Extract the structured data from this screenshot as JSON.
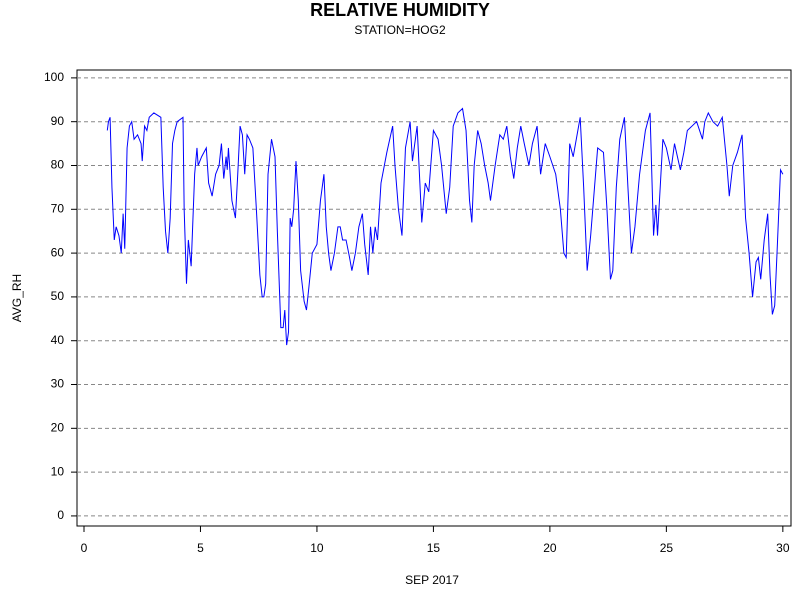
{
  "chart_data": {
    "type": "line",
    "title": "RELATIVE HUMIDITY",
    "subtitle": "STATION=HOG2",
    "x_label": "SEP 2017",
    "y_label": "AVG_RH",
    "xlim": [
      -0.3,
      30.35
    ],
    "ylim": [
      -2.3,
      101.8
    ],
    "xticks": [
      0,
      5,
      10,
      15,
      20,
      25,
      30
    ],
    "yticks": [
      0,
      10,
      20,
      30,
      40,
      50,
      60,
      70,
      80,
      90,
      100
    ],
    "grid": true,
    "x": [
      1.0,
      1.05,
      1.12,
      1.2,
      1.3,
      1.38,
      1.5,
      1.6,
      1.68,
      1.75,
      1.85,
      1.95,
      2.05,
      2.15,
      2.3,
      2.45,
      2.5,
      2.6,
      2.7,
      2.8,
      3.0,
      3.3,
      3.4,
      3.5,
      3.6,
      3.7,
      3.8,
      3.9,
      4.0,
      4.25,
      4.3,
      4.4,
      4.48,
      4.6,
      4.75,
      4.85,
      4.9,
      5.05,
      5.25,
      5.35,
      5.5,
      5.65,
      5.8,
      5.9,
      6.0,
      6.1,
      6.15,
      6.2,
      6.35,
      6.5,
      6.6,
      6.7,
      6.8,
      6.9,
      7.0,
      7.1,
      7.25,
      7.4,
      7.55,
      7.65,
      7.72,
      7.8,
      7.9,
      8.05,
      8.2,
      8.3,
      8.45,
      8.55,
      8.62,
      8.7,
      8.78,
      8.85,
      8.92,
      9.0,
      9.1,
      9.2,
      9.3,
      9.45,
      9.55,
      9.65,
      9.8,
      10.0,
      10.15,
      10.3,
      10.4,
      10.5,
      10.6,
      10.75,
      10.9,
      11.0,
      11.1,
      11.25,
      11.4,
      11.5,
      11.65,
      11.8,
      11.95,
      12.05,
      12.2,
      12.3,
      12.4,
      12.5,
      12.6,
      12.75,
      13.0,
      13.25,
      13.35,
      13.5,
      13.65,
      13.8,
      14.0,
      14.1,
      14.3,
      14.5,
      14.65,
      14.8,
      15.0,
      15.2,
      15.35,
      15.55,
      15.7,
      15.85,
      16.05,
      16.25,
      16.4,
      16.55,
      16.65,
      16.75,
      16.9,
      17.05,
      17.2,
      17.35,
      17.45,
      17.65,
      17.85,
      18.0,
      18.15,
      18.3,
      18.45,
      18.6,
      18.75,
      18.9,
      19.1,
      19.25,
      19.45,
      19.6,
      19.8,
      20.0,
      20.25,
      20.45,
      20.6,
      20.7,
      20.85,
      21.0,
      21.3,
      21.45,
      21.6,
      21.75,
      22.05,
      22.3,
      22.45,
      22.6,
      22.7,
      22.85,
      23.0,
      23.2,
      23.35,
      23.5,
      23.65,
      23.85,
      24.1,
      24.3,
      24.45,
      24.55,
      24.62,
      24.85,
      25.0,
      25.2,
      25.35,
      25.6,
      25.75,
      25.9,
      26.1,
      26.3,
      26.55,
      26.65,
      26.8,
      27.0,
      27.2,
      27.4,
      27.6,
      27.7,
      27.85,
      28.05,
      28.25,
      28.4,
      28.55,
      28.7,
      28.85,
      28.95,
      29.05,
      29.2,
      29.35,
      29.45,
      29.55,
      29.65,
      29.75,
      29.9,
      30.0
    ],
    "series": [
      {
        "name": "AVG_RH",
        "color": "#0000ff",
        "values": [
          88,
          90,
          91,
          75,
          63,
          66,
          64,
          60,
          69,
          61,
          84,
          89,
          90,
          86,
          87,
          85,
          81,
          89,
          88,
          91,
          92,
          91,
          75,
          65,
          60,
          68,
          85,
          88,
          90,
          91,
          70,
          53,
          63,
          57,
          78,
          84,
          80,
          82,
          84,
          76,
          73,
          78,
          80,
          85,
          77,
          82,
          79,
          84,
          72,
          68,
          78,
          89,
          87,
          78,
          87,
          86,
          84,
          70,
          55,
          50,
          50,
          53,
          78,
          86,
          82,
          65,
          43,
          43,
          47,
          39,
          42,
          68,
          66,
          70,
          81,
          72,
          56,
          49,
          47,
          52,
          60,
          62,
          72,
          78,
          66,
          60,
          56,
          60,
          66,
          66,
          63,
          63,
          59,
          56,
          60,
          66,
          69,
          62,
          55,
          66,
          60,
          66,
          63,
          76,
          83,
          89,
          80,
          70,
          64,
          84,
          90,
          81,
          89,
          67,
          76,
          74,
          88,
          86,
          80,
          69,
          75,
          89,
          92,
          93,
          88,
          72,
          67,
          80,
          88,
          85,
          80,
          76,
          72,
          80,
          87,
          86,
          89,
          82,
          77,
          84,
          89,
          85,
          80,
          85,
          89,
          78,
          85,
          82,
          78,
          70,
          60,
          59,
          85,
          82,
          91,
          75,
          56,
          64,
          84,
          83,
          70,
          54,
          56,
          75,
          86,
          91,
          75,
          60,
          66,
          78,
          88,
          92,
          64,
          71,
          64,
          86,
          84,
          79,
          85,
          79,
          83,
          88,
          89,
          90,
          86,
          90,
          92,
          90,
          89,
          91,
          80,
          73,
          80,
          83,
          87,
          68,
          60,
          50,
          58,
          59,
          54,
          63,
          69,
          55,
          46,
          48,
          60,
          79,
          78
        ]
      }
    ]
  }
}
